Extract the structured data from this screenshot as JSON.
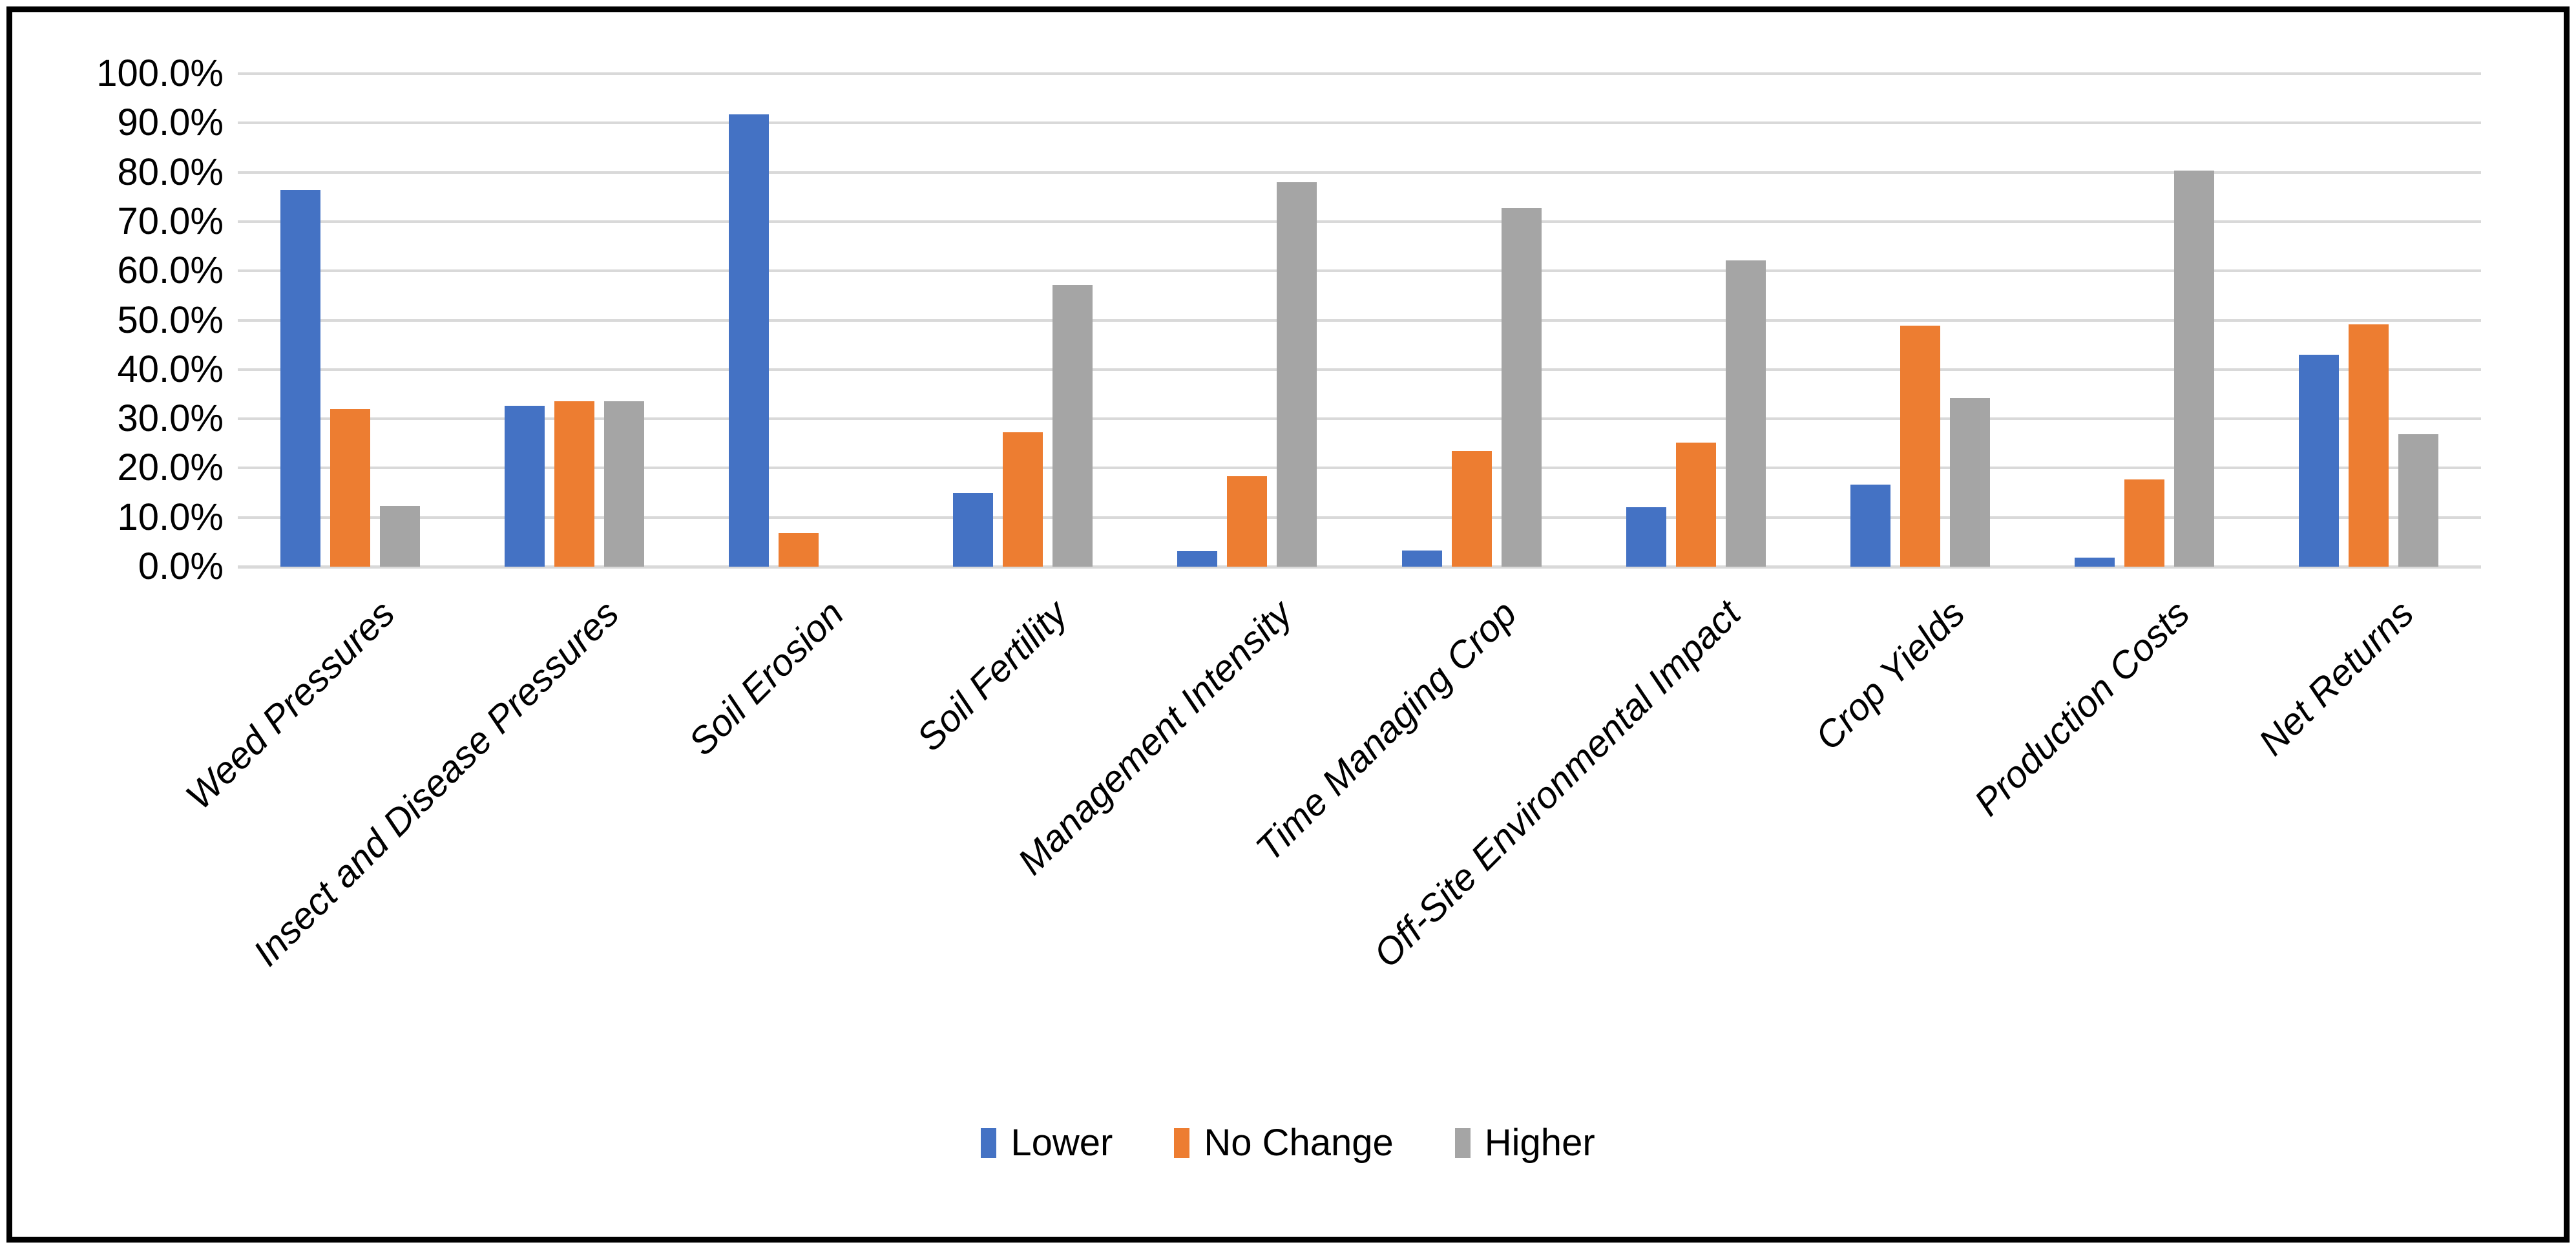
{
  "chart_data": {
    "type": "bar",
    "title": "",
    "xlabel": "",
    "ylabel": "",
    "categories": [
      "Weed Pressures",
      "Insect and Disease Pressures",
      "Soil Erosion",
      "Soil Fertility",
      "Management Intensity",
      "Time Managing Crop",
      "Off-Site Environmental Impact",
      "Crop Yields",
      "Production Costs",
      "Net Returns"
    ],
    "series": [
      {
        "name": "Lower",
        "color": "#4472C4",
        "values": [
          76.4,
          32.6,
          91.7,
          15.0,
          3.2,
          3.3,
          12.0,
          16.7,
          1.8,
          43.0
        ]
      },
      {
        "name": "No Change",
        "color": "#ED7D31",
        "values": [
          32.0,
          33.6,
          6.8,
          27.2,
          18.3,
          23.4,
          25.1,
          48.9,
          17.7,
          49.2
        ]
      },
      {
        "name": "Higher",
        "color": "#A5A5A5",
        "values": [
          12.3,
          33.6,
          0.0,
          57.2,
          78.0,
          72.8,
          62.1,
          34.2,
          80.3,
          26.9
        ]
      }
    ],
    "ylim": [
      0,
      100
    ],
    "ytick_step": 10,
    "grid": true,
    "legend_position": "bottom"
  },
  "axis_y": {
    "tick_labels": [
      "100.0%",
      "90.0%",
      "80.0%",
      "70.0%",
      "60.0%",
      "50.0%",
      "40.0%",
      "30.0%",
      "20.0%",
      "10.0%",
      "0.0%"
    ]
  },
  "style": {
    "gridline_color": "#D9D9D9",
    "border_color": "#000000",
    "background_color": "#FFFFFF",
    "text_color": "#000000"
  }
}
